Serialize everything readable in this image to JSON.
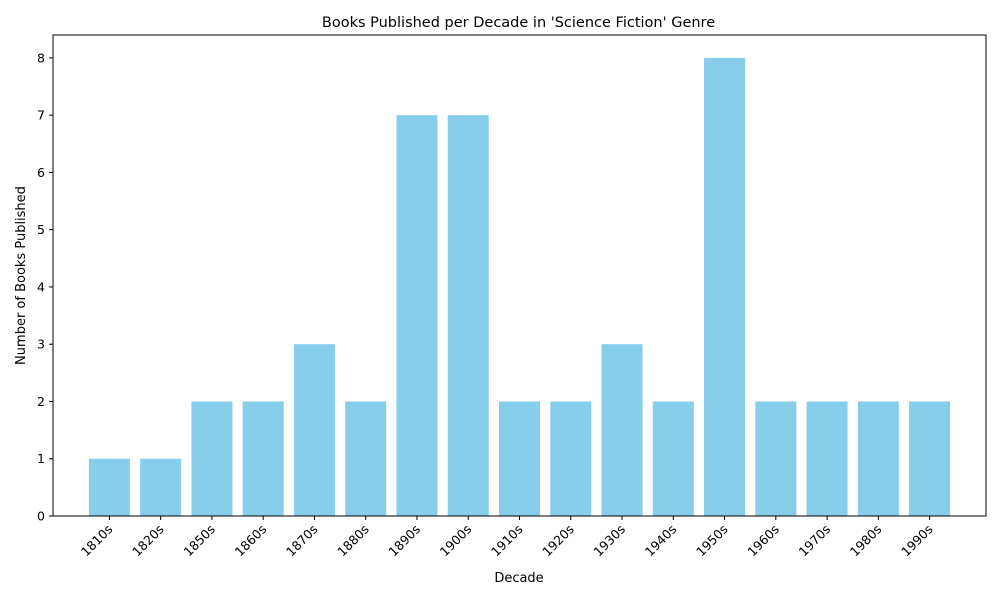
{
  "chart_data": {
    "type": "bar",
    "title": "Books Published per Decade in 'Science Fiction' Genre",
    "xlabel": "Decade",
    "ylabel": "Number of Books Published",
    "categories": [
      "1810s",
      "1820s",
      "1850s",
      "1860s",
      "1870s",
      "1880s",
      "1890s",
      "1900s",
      "1910s",
      "1920s",
      "1930s",
      "1940s",
      "1950s",
      "1960s",
      "1970s",
      "1980s",
      "1990s"
    ],
    "values": [
      1,
      1,
      2,
      2,
      3,
      2,
      7,
      7,
      2,
      2,
      3,
      2,
      8,
      2,
      2,
      2,
      2
    ],
    "ylim": [
      0,
      8.4
    ],
    "yticks": [
      0,
      1,
      2,
      3,
      4,
      5,
      6,
      7,
      8
    ],
    "bar_color": "#87ceeb",
    "grid": false,
    "legend": "none"
  }
}
